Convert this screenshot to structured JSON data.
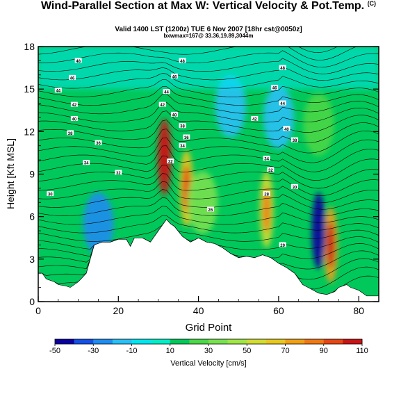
{
  "header": {
    "title": "Wind-Parallel Section at Max W: Vertical Velocity & Pot.Temp.",
    "title_mark": "(C)",
    "subtitle": "Valid 1400 LST (1200z) TUE 6 Nov 2007 [18hr cst@0050z]",
    "subtitle2": "bxwmax=167@ 33.36,19.89,3044m"
  },
  "chart_data": {
    "type": "heatmap",
    "xlabel": "Grid Point",
    "ylabel": "Height [Kft MSL]",
    "xlim": [
      0,
      85
    ],
    "ylim": [
      0,
      18
    ],
    "xticks": [
      0,
      20,
      40,
      60,
      80
    ],
    "yticks": [
      0,
      3,
      6,
      9,
      12,
      15,
      18
    ],
    "colorbar": {
      "label": "Vertical Velocity [cm/s]",
      "bounds": [
        -50,
        -40,
        -30,
        -20,
        -10,
        0,
        10,
        20,
        30,
        40,
        50,
        60,
        70,
        80,
        90,
        100,
        110
      ],
      "tick_labels": [
        "-50",
        "-30",
        "-10",
        "10",
        "30",
        "50",
        "70",
        "90",
        "110"
      ],
      "colors": [
        "#0a00a0",
        "#1450e6",
        "#1e8cf0",
        "#28c0f5",
        "#00e6ee",
        "#00eec8",
        "#00c85a",
        "#4bd746",
        "#78e150",
        "#a0e646",
        "#d2dc32",
        "#e6c81e",
        "#f0a014",
        "#f07814",
        "#e64614",
        "#c81414"
      ]
    },
    "terrain_height_kft": [
      [
        0,
        2
      ],
      [
        1,
        2
      ],
      [
        2,
        1.6
      ],
      [
        4,
        1.4
      ],
      [
        5,
        1.2
      ],
      [
        7,
        1.1
      ],
      [
        8,
        1.0
      ],
      [
        10,
        1.4
      ],
      [
        12,
        2.0
      ],
      [
        13,
        3.0
      ],
      [
        14,
        4.0
      ],
      [
        16,
        4.2
      ],
      [
        18,
        4.2
      ],
      [
        20,
        4.4
      ],
      [
        22,
        4.4
      ],
      [
        23,
        3.9
      ],
      [
        24,
        4.5
      ],
      [
        26,
        4.5
      ],
      [
        28,
        4.2
      ],
      [
        30,
        5.0
      ],
      [
        32,
        5.8
      ],
      [
        33,
        5.5
      ],
      [
        34,
        5.3
      ],
      [
        36,
        4.6
      ],
      [
        38,
        4.2
      ],
      [
        40,
        4.5
      ],
      [
        42,
        4.2
      ],
      [
        44,
        4.1
      ],
      [
        46,
        3.8
      ],
      [
        48,
        3.4
      ],
      [
        50,
        3.1
      ],
      [
        52,
        3.2
      ],
      [
        54,
        3.1
      ],
      [
        56,
        3.3
      ],
      [
        58,
        3.1
      ],
      [
        60,
        2.7
      ],
      [
        62,
        2.4
      ],
      [
        64,
        2.0
      ],
      [
        65,
        1.6
      ],
      [
        66,
        1.2
      ],
      [
        68,
        0.9
      ],
      [
        70,
        0.6
      ],
      [
        72,
        0.5
      ],
      [
        74,
        0.7
      ],
      [
        75,
        1.0
      ],
      [
        77,
        1.2
      ],
      [
        78,
        1.0
      ],
      [
        80,
        0.8
      ],
      [
        82,
        0.4
      ],
      [
        85,
        0.4
      ]
    ],
    "vertical_velocity_features": [
      {
        "x": 31.5,
        "y": 10.2,
        "value": 110
      },
      {
        "x": 37,
        "y": 8.0,
        "value": 60
      },
      {
        "x": 41,
        "y": 7.0,
        "value": 30
      },
      {
        "x": 57,
        "y": 6.5,
        "value": 55
      },
      {
        "x": 73,
        "y": 4.0,
        "value": 70
      },
      {
        "x": 70,
        "y": 5.0,
        "value": -45
      },
      {
        "x": 15,
        "y": 5.5,
        "value": -25
      },
      {
        "x": 60,
        "y": 13.0,
        "value": -15
      },
      {
        "x": 70,
        "y": 12.5,
        "value": 25
      },
      {
        "x": 48,
        "y": 13.8,
        "value": -20
      }
    ],
    "contour_labels": [
      {
        "x": 10,
        "y": 17.0,
        "text": "48"
      },
      {
        "x": 8.5,
        "y": 15.8,
        "text": "46"
      },
      {
        "x": 5,
        "y": 14.9,
        "text": "44"
      },
      {
        "x": 9,
        "y": 13.9,
        "text": "42"
      },
      {
        "x": 9,
        "y": 12.9,
        "text": "40"
      },
      {
        "x": 8,
        "y": 11.9,
        "text": "38"
      },
      {
        "x": 15,
        "y": 11.2,
        "text": "36"
      },
      {
        "x": 12,
        "y": 9.8,
        "text": "34"
      },
      {
        "x": 20,
        "y": 9.1,
        "text": "32"
      },
      {
        "x": 3,
        "y": 7.6,
        "text": "30"
      },
      {
        "x": 36,
        "y": 17.0,
        "text": "48"
      },
      {
        "x": 34,
        "y": 15.9,
        "text": "46"
      },
      {
        "x": 32,
        "y": 14.8,
        "text": "44"
      },
      {
        "x": 31,
        "y": 13.9,
        "text": "42"
      },
      {
        "x": 34,
        "y": 13.2,
        "text": "40"
      },
      {
        "x": 36,
        "y": 12.4,
        "text": "38"
      },
      {
        "x": 37,
        "y": 11.6,
        "text": "36"
      },
      {
        "x": 36,
        "y": 11.0,
        "text": "34"
      },
      {
        "x": 33,
        "y": 9.9,
        "text": "32"
      },
      {
        "x": 43,
        "y": 6.5,
        "text": "26"
      },
      {
        "x": 61,
        "y": 16.5,
        "text": "48"
      },
      {
        "x": 59,
        "y": 15.1,
        "text": "46"
      },
      {
        "x": 61,
        "y": 14.0,
        "text": "44"
      },
      {
        "x": 54,
        "y": 12.9,
        "text": "42"
      },
      {
        "x": 62,
        "y": 12.2,
        "text": "40"
      },
      {
        "x": 64,
        "y": 11.4,
        "text": "38"
      },
      {
        "x": 57,
        "y": 10.1,
        "text": "34"
      },
      {
        "x": 58,
        "y": 9.3,
        "text": "32"
      },
      {
        "x": 64,
        "y": 8.1,
        "text": "30"
      },
      {
        "x": 57,
        "y": 7.6,
        "text": "28"
      },
      {
        "x": 61,
        "y": 4.0,
        "text": "20"
      }
    ]
  }
}
